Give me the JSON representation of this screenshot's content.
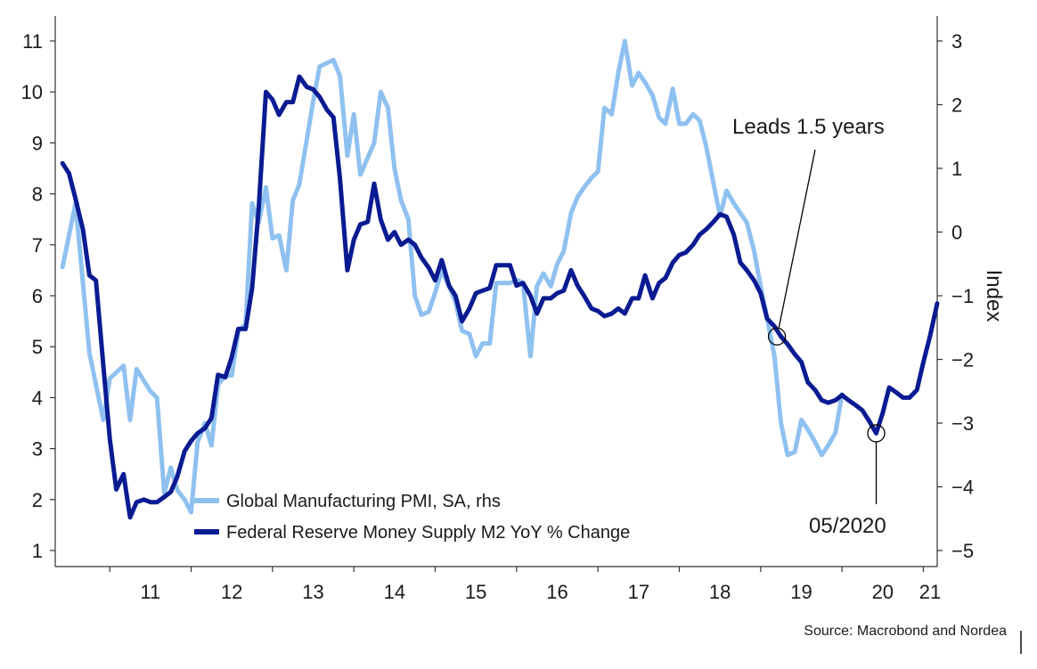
{
  "chart_data": {
    "type": "line",
    "title": "",
    "left_axis": {
      "ylim": [
        1,
        11
      ],
      "ticks": [
        1,
        2,
        3,
        4,
        5,
        6,
        7,
        8,
        9,
        10,
        11
      ],
      "label": ""
    },
    "right_axis": {
      "ylim": [
        -5,
        3
      ],
      "ticks": [
        -5,
        -4,
        -3,
        -2,
        -1,
        0,
        1,
        2,
        3
      ],
      "label": "Index"
    },
    "x_axis": {
      "xlim": [
        2010.33,
        2021.17
      ],
      "tick_labels": [
        "11",
        "12",
        "13",
        "14",
        "15",
        "16",
        "17",
        "18",
        "19",
        "20",
        "21"
      ]
    },
    "grid": false,
    "legend_position": "bottom-left",
    "series": [
      {
        "name": "Global Manufacturing PMI, SA, rhs",
        "axis": "right",
        "color": "#8fc1f0",
        "points": [
          [
            2010.42,
            -0.55
          ],
          [
            2010.58,
            0.45
          ],
          [
            2010.75,
            -1.9
          ],
          [
            2010.92,
            -2.95
          ],
          [
            2011.0,
            -2.3
          ],
          [
            2011.17,
            -2.1
          ],
          [
            2011.25,
            -2.95
          ],
          [
            2011.33,
            -2.15
          ],
          [
            2011.5,
            -2.5
          ],
          [
            2011.58,
            -2.6
          ],
          [
            2011.67,
            -4.1
          ],
          [
            2011.75,
            -3.7
          ],
          [
            2011.83,
            -4.05
          ],
          [
            2011.92,
            -4.2
          ],
          [
            2012.0,
            -4.4
          ],
          [
            2012.08,
            -3.3
          ],
          [
            2012.17,
            -3.0
          ],
          [
            2012.25,
            -3.35
          ],
          [
            2012.33,
            -2.4
          ],
          [
            2012.42,
            -2.25
          ],
          [
            2012.5,
            -2.25
          ],
          [
            2012.58,
            -1.55
          ],
          [
            2012.67,
            -1.45
          ],
          [
            2012.75,
            0.45
          ],
          [
            2012.83,
            0.15
          ],
          [
            2012.92,
            0.7
          ],
          [
            2013.0,
            -0.1
          ],
          [
            2013.08,
            -0.05
          ],
          [
            2013.17,
            -0.6
          ],
          [
            2013.25,
            0.5
          ],
          [
            2013.33,
            0.75
          ],
          [
            2013.5,
            2.05
          ],
          [
            2013.58,
            2.6
          ],
          [
            2013.75,
            2.7
          ],
          [
            2013.83,
            2.45
          ],
          [
            2013.92,
            1.2
          ],
          [
            2014.0,
            1.85
          ],
          [
            2014.08,
            0.9
          ],
          [
            2014.25,
            1.4
          ],
          [
            2014.33,
            2.2
          ],
          [
            2014.42,
            1.95
          ],
          [
            2014.5,
            1.0
          ],
          [
            2014.58,
            0.5
          ],
          [
            2014.67,
            0.2
          ],
          [
            2014.75,
            -1.0
          ],
          [
            2014.83,
            -1.3
          ],
          [
            2014.92,
            -1.25
          ],
          [
            2015.0,
            -0.95
          ],
          [
            2015.08,
            -0.6
          ],
          [
            2015.17,
            -0.85
          ],
          [
            2015.25,
            -1.1
          ],
          [
            2015.33,
            -1.55
          ],
          [
            2015.42,
            -1.6
          ],
          [
            2015.5,
            -1.95
          ],
          [
            2015.58,
            -1.75
          ],
          [
            2015.67,
            -1.75
          ],
          [
            2015.75,
            -0.8
          ],
          [
            2015.83,
            -0.8
          ],
          [
            2015.92,
            -0.8
          ],
          [
            2016.0,
            -0.75
          ],
          [
            2016.08,
            -0.8
          ],
          [
            2016.17,
            -1.95
          ],
          [
            2016.25,
            -0.85
          ],
          [
            2016.33,
            -0.65
          ],
          [
            2016.42,
            -0.85
          ],
          [
            2016.5,
            -0.5
          ],
          [
            2016.58,
            -0.3
          ],
          [
            2016.67,
            0.3
          ],
          [
            2016.75,
            0.55
          ],
          [
            2016.83,
            0.7
          ],
          [
            2016.92,
            0.85
          ],
          [
            2017.0,
            0.95
          ],
          [
            2017.08,
            1.95
          ],
          [
            2017.17,
            1.85
          ],
          [
            2017.25,
            2.5
          ],
          [
            2017.33,
            3.0
          ],
          [
            2017.42,
            2.3
          ],
          [
            2017.5,
            2.5
          ],
          [
            2017.58,
            2.35
          ],
          [
            2017.67,
            2.15
          ],
          [
            2017.75,
            1.8
          ],
          [
            2017.83,
            1.7
          ],
          [
            2017.92,
            2.25
          ],
          [
            2018.0,
            1.7
          ],
          [
            2018.08,
            1.7
          ],
          [
            2018.17,
            1.85
          ],
          [
            2018.25,
            1.75
          ],
          [
            2018.33,
            1.35
          ],
          [
            2018.5,
            0.25
          ],
          [
            2018.58,
            0.65
          ],
          [
            2018.67,
            0.45
          ],
          [
            2018.75,
            0.3
          ],
          [
            2018.83,
            0.15
          ],
          [
            2018.92,
            -0.3
          ],
          [
            2019.0,
            -0.85
          ],
          [
            2019.08,
            -1.35
          ],
          [
            2019.17,
            -1.95
          ],
          [
            2019.25,
            -3.0
          ],
          [
            2019.33,
            -3.5
          ],
          [
            2019.42,
            -3.45
          ],
          [
            2019.5,
            -2.95
          ],
          [
            2019.58,
            -3.1
          ],
          [
            2019.67,
            -3.3
          ],
          [
            2019.75,
            -3.5
          ],
          [
            2019.83,
            -3.35
          ],
          [
            2019.92,
            -3.15
          ],
          [
            2020.0,
            -2.55
          ]
        ]
      },
      {
        "name": "Federal Reserve Money Supply M2 YoY % Change",
        "axis": "left",
        "color": "#0a1b92",
        "points": [
          [
            2010.42,
            8.6
          ],
          [
            2010.5,
            8.4
          ],
          [
            2010.58,
            7.9
          ],
          [
            2010.67,
            7.3
          ],
          [
            2010.75,
            6.4
          ],
          [
            2010.83,
            6.3
          ],
          [
            2010.92,
            4.65
          ],
          [
            2011.0,
            3.2
          ],
          [
            2011.08,
            2.2
          ],
          [
            2011.17,
            2.5
          ],
          [
            2011.25,
            1.65
          ],
          [
            2011.33,
            1.95
          ],
          [
            2011.42,
            2.0
          ],
          [
            2011.5,
            1.95
          ],
          [
            2011.58,
            1.95
          ],
          [
            2011.67,
            2.05
          ],
          [
            2011.75,
            2.15
          ],
          [
            2011.83,
            2.45
          ],
          [
            2011.92,
            2.95
          ],
          [
            2012.0,
            3.15
          ],
          [
            2012.08,
            3.3
          ],
          [
            2012.17,
            3.4
          ],
          [
            2012.25,
            3.6
          ],
          [
            2012.33,
            4.45
          ],
          [
            2012.42,
            4.4
          ],
          [
            2012.5,
            4.8
          ],
          [
            2012.58,
            5.35
          ],
          [
            2012.67,
            5.35
          ],
          [
            2012.75,
            6.15
          ],
          [
            2012.83,
            7.7
          ],
          [
            2012.92,
            10.0
          ],
          [
            2013.0,
            9.85
          ],
          [
            2013.08,
            9.55
          ],
          [
            2013.17,
            9.8
          ],
          [
            2013.25,
            9.8
          ],
          [
            2013.33,
            10.3
          ],
          [
            2013.42,
            10.1
          ],
          [
            2013.5,
            10.05
          ],
          [
            2013.58,
            9.9
          ],
          [
            2013.67,
            9.65
          ],
          [
            2013.75,
            9.5
          ],
          [
            2013.83,
            8.3
          ],
          [
            2013.92,
            6.5
          ],
          [
            2014.0,
            7.1
          ],
          [
            2014.08,
            7.4
          ],
          [
            2014.17,
            7.45
          ],
          [
            2014.25,
            8.2
          ],
          [
            2014.33,
            7.5
          ],
          [
            2014.42,
            7.1
          ],
          [
            2014.5,
            7.25
          ],
          [
            2014.58,
            7.0
          ],
          [
            2014.67,
            7.1
          ],
          [
            2014.75,
            7.0
          ],
          [
            2014.83,
            6.75
          ],
          [
            2014.92,
            6.55
          ],
          [
            2015.0,
            6.3
          ],
          [
            2015.08,
            6.7
          ],
          [
            2015.17,
            6.2
          ],
          [
            2015.25,
            6.0
          ],
          [
            2015.33,
            5.5
          ],
          [
            2015.42,
            5.75
          ],
          [
            2015.5,
            6.05
          ],
          [
            2015.58,
            6.1
          ],
          [
            2015.67,
            6.15
          ],
          [
            2015.75,
            6.6
          ],
          [
            2015.83,
            6.6
          ],
          [
            2015.92,
            6.6
          ],
          [
            2016.0,
            6.2
          ],
          [
            2016.08,
            6.25
          ],
          [
            2016.17,
            6.0
          ],
          [
            2016.25,
            5.65
          ],
          [
            2016.33,
            5.95
          ],
          [
            2016.42,
            5.95
          ],
          [
            2016.5,
            6.05
          ],
          [
            2016.58,
            6.1
          ],
          [
            2016.67,
            6.5
          ],
          [
            2016.75,
            6.2
          ],
          [
            2016.83,
            6.0
          ],
          [
            2016.92,
            5.75
          ],
          [
            2017.0,
            5.7
          ],
          [
            2017.08,
            5.6
          ],
          [
            2017.17,
            5.65
          ],
          [
            2017.25,
            5.75
          ],
          [
            2017.33,
            5.65
          ],
          [
            2017.42,
            5.95
          ],
          [
            2017.5,
            5.95
          ],
          [
            2017.58,
            6.4
          ],
          [
            2017.67,
            5.95
          ],
          [
            2017.75,
            6.25
          ],
          [
            2017.83,
            6.35
          ],
          [
            2017.92,
            6.65
          ],
          [
            2018.0,
            6.8
          ],
          [
            2018.08,
            6.85
          ],
          [
            2018.17,
            7.0
          ],
          [
            2018.25,
            7.2
          ],
          [
            2018.33,
            7.3
          ],
          [
            2018.42,
            7.45
          ],
          [
            2018.5,
            7.6
          ],
          [
            2018.58,
            7.55
          ],
          [
            2018.67,
            7.2
          ],
          [
            2018.75,
            6.65
          ],
          [
            2018.83,
            6.5
          ],
          [
            2018.92,
            6.3
          ],
          [
            2019.0,
            6.05
          ],
          [
            2019.08,
            5.55
          ],
          [
            2019.17,
            5.4
          ],
          [
            2019.25,
            5.2
          ],
          [
            2019.33,
            5.05
          ],
          [
            2019.42,
            4.85
          ],
          [
            2019.5,
            4.7
          ],
          [
            2019.58,
            4.3
          ],
          [
            2019.67,
            4.15
          ],
          [
            2019.75,
            3.95
          ],
          [
            2019.83,
            3.9
          ],
          [
            2019.92,
            3.95
          ],
          [
            2020.0,
            4.05
          ],
          [
            2020.08,
            3.95
          ],
          [
            2020.17,
            3.85
          ],
          [
            2020.25,
            3.75
          ],
          [
            2020.33,
            3.55
          ],
          [
            2020.42,
            3.3
          ],
          [
            2020.5,
            3.7
          ],
          [
            2020.58,
            4.2
          ],
          [
            2020.67,
            4.1
          ],
          [
            2020.75,
            4.0
          ],
          [
            2020.83,
            4.0
          ],
          [
            2020.92,
            4.15
          ],
          [
            2021.0,
            4.7
          ],
          [
            2021.08,
            5.2
          ],
          [
            2021.17,
            5.85
          ]
        ]
      }
    ],
    "annotations": [
      {
        "text": "Leads 1.5 years",
        "point": [
          2019.2,
          5.2
        ],
        "axis": "left"
      },
      {
        "text": "05/2020",
        "point": [
          2020.42,
          3.3
        ],
        "axis": "left"
      }
    ],
    "source": "Source: Macrobond and Nordea"
  }
}
